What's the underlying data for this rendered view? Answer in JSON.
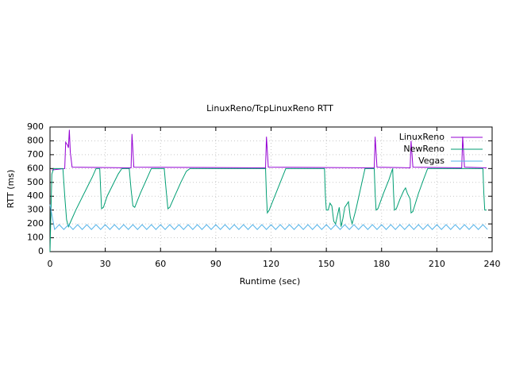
{
  "chart_data": {
    "type": "line",
    "title": "LinuxReno/TcpLinuxReno RTT",
    "x_label": "Runtime (sec)",
    "y_label": "RTT (ms)",
    "xlim": [
      0,
      240
    ],
    "xticks": [
      0,
      30,
      60,
      90,
      120,
      150,
      180,
      210,
      240
    ],
    "ylim": [
      0,
      900
    ],
    "yticks": [
      0,
      100,
      200,
      300,
      400,
      500,
      600,
      700,
      800,
      900
    ],
    "grid": true,
    "legend": "top-right",
    "series": [
      {
        "name": "LinuxReno",
        "color": "#9400d3",
        "x": [
          1,
          8,
          8.5,
          9.5,
          10,
          10.5,
          11,
          12,
          44,
          44.5,
          45.5,
          117,
          117.5,
          118.5,
          176,
          176.5,
          177.5,
          195.5,
          196,
          197,
          223.5,
          224,
          225,
          237
        ],
        "values": [
          590,
          600,
          790,
          770,
          750,
          880,
          720,
          610,
          605,
          850,
          610,
          605,
          830,
          610,
          605,
          830,
          610,
          605,
          800,
          610,
          605,
          830,
          610,
          605
        ]
      },
      {
        "name": "NewReno",
        "color": "#009e73",
        "x": [
          0,
          1,
          2,
          7,
          8,
          9,
          10,
          11,
          14,
          17,
          20,
          23,
          25,
          27,
          27.5,
          28,
          29,
          31,
          34,
          37,
          39,
          43,
          44,
          45,
          46,
          49,
          52,
          55,
          62,
          63,
          64,
          65,
          68,
          71,
          74,
          76,
          117,
          117.5,
          118,
          119,
          122,
          125,
          128,
          149,
          149.5,
          150,
          151,
          152,
          153,
          154,
          155,
          156,
          157,
          158,
          159,
          160,
          162,
          163,
          164,
          166,
          168,
          171,
          176,
          176.5,
          177,
          178,
          181,
          184,
          186,
          186.5,
          187,
          188,
          190,
          192,
          193,
          194,
          195.5,
          196,
          197,
          200,
          203,
          205,
          235,
          235.5,
          236,
          237
        ],
        "values": [
          0,
          560,
          600,
          600,
          400,
          230,
          180,
          210,
          300,
          380,
          460,
          540,
          600,
          600,
          450,
          310,
          320,
          400,
          480,
          560,
          600,
          600,
          450,
          330,
          320,
          420,
          510,
          600,
          600,
          450,
          310,
          320,
          410,
          500,
          580,
          600,
          600,
          400,
          280,
          300,
          400,
          500,
          600,
          600,
          400,
          300,
          300,
          350,
          330,
          220,
          200,
          260,
          320,
          180,
          240,
          320,
          360,
          250,
          200,
          300,
          420,
          600,
          600,
          420,
          300,
          310,
          420,
          520,
          600,
          420,
          300,
          310,
          380,
          440,
          460,
          420,
          380,
          280,
          290,
          420,
          530,
          600,
          600,
          420,
          300,
          300
        ]
      },
      {
        "name": "Vegas",
        "color": "#56b4e9",
        "x": [
          0,
          2.5,
          5,
          7.5,
          10,
          12.5,
          15,
          17.5,
          20,
          22.5,
          25,
          27.5,
          30,
          32.5,
          35,
          37.5,
          40,
          42.5,
          45,
          47.5,
          50,
          52.5,
          55,
          57.5,
          60,
          62.5,
          65,
          67.5,
          70,
          72.5,
          75,
          77.5,
          80,
          82.5,
          85,
          87.5,
          90,
          92.5,
          95,
          97.5,
          100,
          102.5,
          105,
          107.5,
          110,
          112.5,
          115,
          117.5,
          120,
          122.5,
          125,
          127.5,
          130,
          132.5,
          135,
          137.5,
          140,
          142.5,
          145,
          147.5,
          150,
          152.5,
          155,
          157.5,
          160,
          162.5,
          165,
          167.5,
          170,
          172.5,
          175,
          177.5,
          180,
          182.5,
          185,
          187.5,
          190,
          192.5,
          195,
          197.5,
          200,
          202.5,
          205,
          207.5,
          210,
          212.5,
          215,
          217.5,
          220,
          222.5,
          225,
          227.5,
          230,
          232.5,
          235,
          237.5
        ],
        "values": [
          340,
          160,
          195,
          160,
          195,
          160,
          195,
          160,
          195,
          160,
          195,
          160,
          195,
          160,
          195,
          160,
          195,
          160,
          195,
          160,
          195,
          160,
          195,
          160,
          195,
          160,
          195,
          160,
          195,
          160,
          195,
          160,
          195,
          160,
          195,
          160,
          195,
          160,
          195,
          160,
          195,
          160,
          195,
          160,
          195,
          160,
          195,
          160,
          195,
          160,
          195,
          160,
          195,
          160,
          195,
          160,
          195,
          160,
          195,
          160,
          195,
          160,
          195,
          160,
          195,
          160,
          195,
          160,
          195,
          160,
          195,
          160,
          195,
          160,
          195,
          160,
          195,
          160,
          195,
          160,
          195,
          160,
          195,
          160,
          195,
          160,
          195,
          160,
          195,
          160,
          195,
          160,
          195,
          160,
          195,
          160
        ]
      }
    ]
  }
}
